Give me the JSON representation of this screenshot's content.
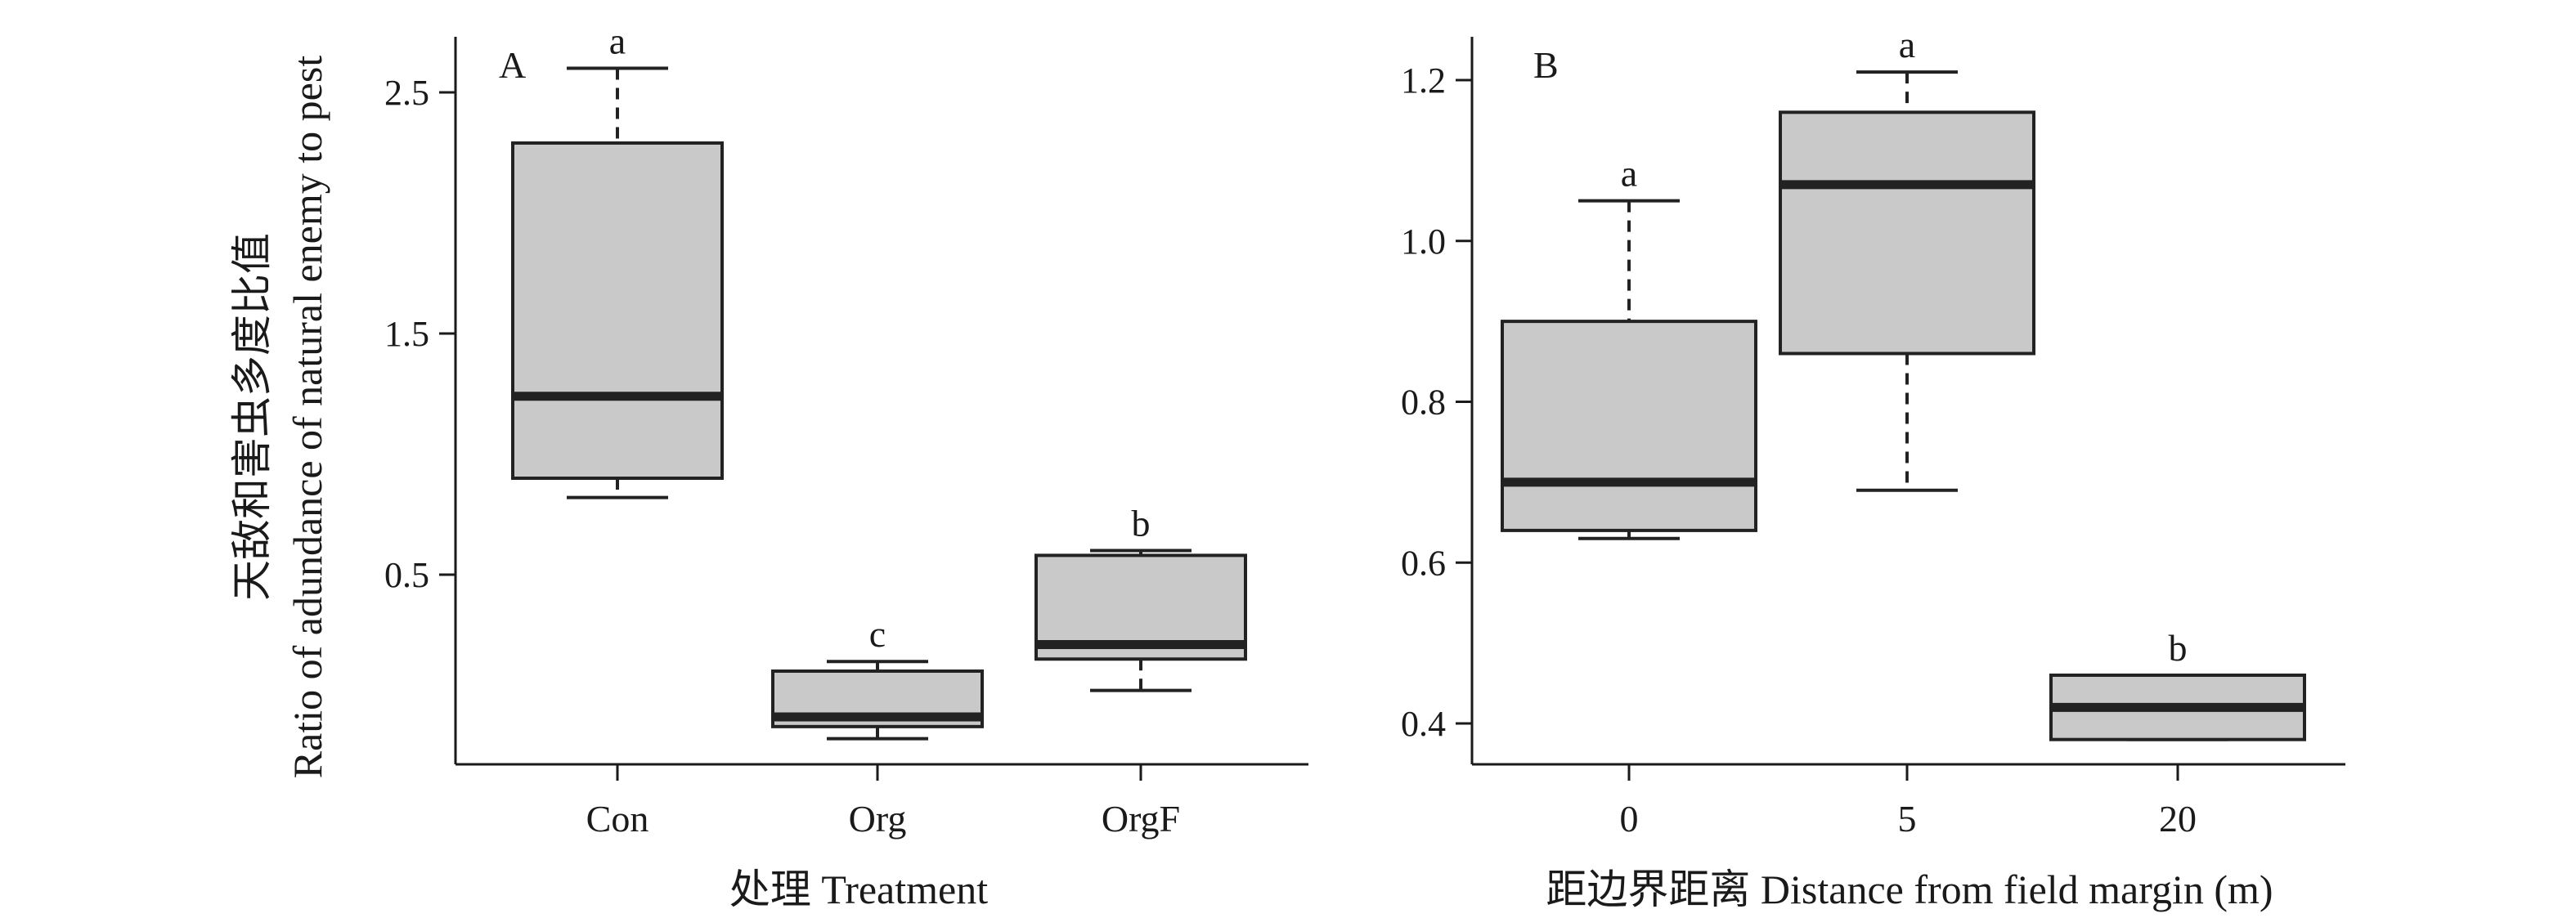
{
  "y_axis_title_line1": "天敌和害虫多度比值",
  "y_axis_title_line2": "Ratio of adundance of natural enemy to pest",
  "chart_data": [
    {
      "type": "boxplot",
      "panel_label": "A",
      "xlabel": "处理 Treatment",
      "categories": [
        "Con",
        "Org",
        "OrgF"
      ],
      "ylim": [
        -0.3,
        2.8
      ],
      "yticks": [
        0.5,
        1.5,
        2.5
      ],
      "ytick_labels": [
        "0.5",
        "1.5",
        "2.5"
      ],
      "boxes": [
        {
          "category": "Con",
          "whisker_low": 0.82,
          "q1": 0.9,
          "median": 1.24,
          "q3": 2.29,
          "whisker_high": 2.6,
          "significance": "a"
        },
        {
          "category": "Org",
          "whisker_low": -0.18,
          "q1": -0.13,
          "median": -0.09,
          "q3": 0.1,
          "whisker_high": 0.14,
          "significance": "c"
        },
        {
          "category": "OrgF",
          "whisker_low": 0.02,
          "q1": 0.15,
          "median": 0.21,
          "q3": 0.58,
          "whisker_high": 0.6,
          "significance": "b"
        }
      ]
    },
    {
      "type": "boxplot",
      "panel_label": "B",
      "xlabel": "距边界距离 Distance from field margin (m)",
      "categories": [
        "0",
        "5",
        "20"
      ],
      "ylim": [
        0.35,
        1.25
      ],
      "yticks": [
        0.4,
        0.6,
        0.8,
        1.0,
        1.2
      ],
      "ytick_labels": [
        "0.4",
        "0.6",
        "0.8",
        "1.0",
        "1.2"
      ],
      "boxes": [
        {
          "category": "0",
          "whisker_low": 0.63,
          "q1": 0.64,
          "median": 0.7,
          "q3": 0.9,
          "whisker_high": 1.05,
          "significance": "a"
        },
        {
          "category": "5",
          "whisker_low": 0.69,
          "q1": 0.86,
          "median": 1.07,
          "q3": 1.16,
          "whisker_high": 1.21,
          "significance": "a"
        },
        {
          "category": "20",
          "whisker_low": 0.38,
          "q1": 0.38,
          "median": 0.42,
          "q3": 0.46,
          "whisker_high": 0.46,
          "significance": "b"
        }
      ]
    }
  ]
}
